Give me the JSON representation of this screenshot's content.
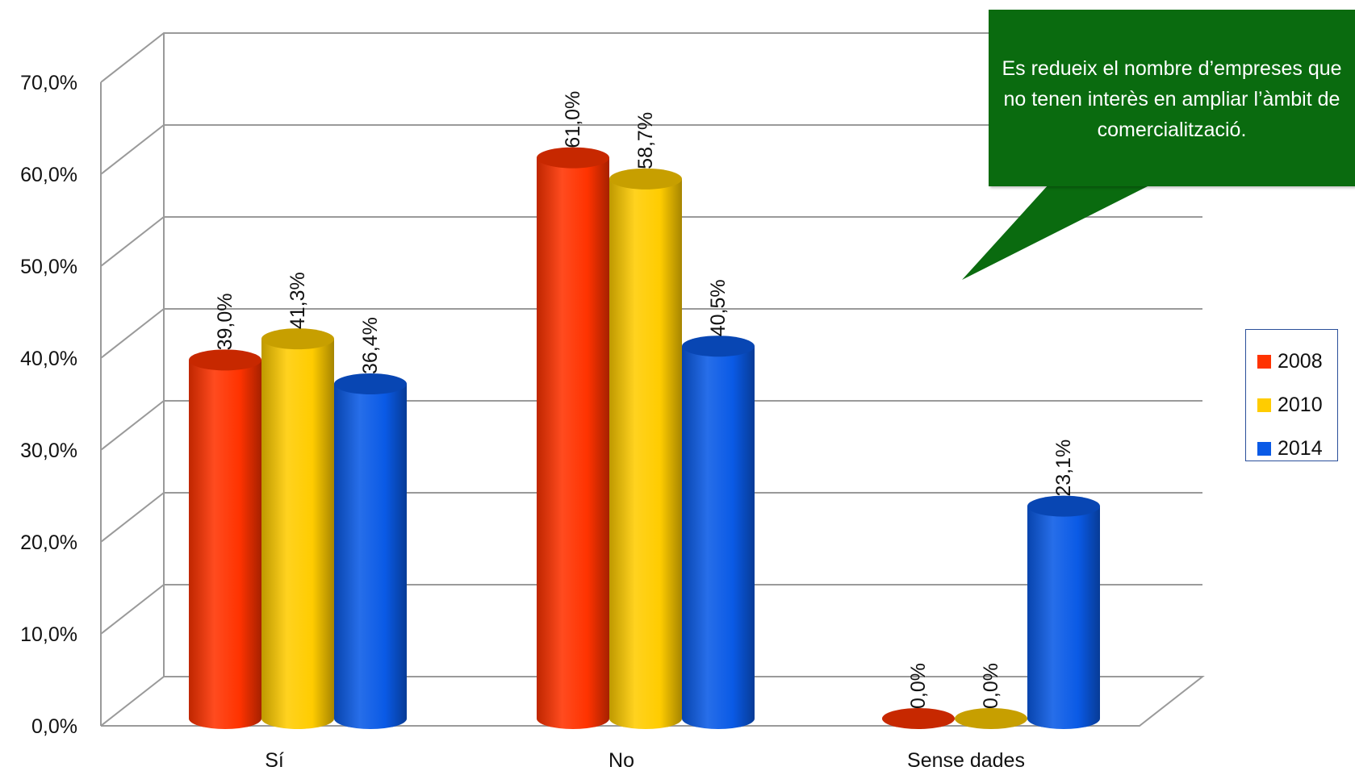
{
  "chart_data": {
    "type": "bar",
    "style": "3d-cylinder",
    "categories": [
      "Sí",
      "No",
      "Sense dades"
    ],
    "series": [
      {
        "name": "2008",
        "color": "#ff3300",
        "values": [
          39.0,
          61.0,
          0.0
        ],
        "labels": [
          "39,0%",
          "61,0%",
          "0,0%"
        ]
      },
      {
        "name": "2010",
        "color": "#ffcc00",
        "values": [
          41.3,
          58.7,
          0.0
        ],
        "labels": [
          "41,3%",
          "58,7%",
          "0,0%"
        ]
      },
      {
        "name": "2014",
        "color": "#0a5ae6",
        "values": [
          36.4,
          40.5,
          23.1
        ],
        "labels": [
          "36,4%",
          "40,5%",
          "23,1%"
        ]
      }
    ],
    "ylim": [
      0,
      70
    ],
    "yticks": [
      0,
      10,
      20,
      30,
      40,
      50,
      60,
      70
    ],
    "ytick_labels": [
      "0,0%",
      "10,0%",
      "20,0%",
      "30,0%",
      "40,0%",
      "50,0%",
      "60,0%",
      "70,0%"
    ],
    "grid": true,
    "legend_position": "right",
    "annotation": "Es redueix el nombre d’empreses que no tenen interès en ampliar l’àmbit de comercialització."
  },
  "callout": {
    "text": "Es redueix el nombre d’empreses que no tenen interès en ampliar l’àmbit de comercialització.",
    "color": "#0a6b0f"
  },
  "legend": {
    "items": [
      {
        "label": "2008",
        "color": "#ff3300"
      },
      {
        "label": "2010",
        "color": "#ffcc00"
      },
      {
        "label": "2014",
        "color": "#0a5ae6"
      }
    ]
  }
}
